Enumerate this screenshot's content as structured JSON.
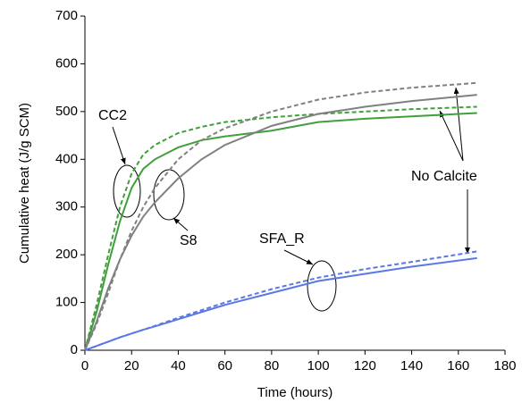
{
  "chart_data": {
    "type": "line",
    "xlabel": "Time (hours)",
    "ylabel": "Cumulative heat (J/g SCM)",
    "x": [
      0,
      5,
      10,
      15,
      20,
      25,
      30,
      40,
      50,
      60,
      80,
      100,
      120,
      140,
      168
    ],
    "series": [
      {
        "color": "#3fa03a",
        "linestyle": "solid",
        "values": [
          0,
          80,
          180,
          270,
          340,
          380,
          400,
          425,
          440,
          448,
          460,
          478,
          485,
          490,
          497
        ]
      },
      {
        "color": "#3fa03a",
        "linestyle": "dashed",
        "values": [
          0,
          95,
          200,
          300,
          370,
          410,
          430,
          455,
          468,
          478,
          488,
          495,
          500,
          505,
          510
        ]
      },
      {
        "color": "#808080",
        "linestyle": "solid",
        "values": [
          0,
          60,
          130,
          190,
          240,
          280,
          310,
          360,
          400,
          430,
          470,
          495,
          510,
          522,
          535
        ]
      },
      {
        "color": "#808080",
        "linestyle": "dashed",
        "values": [
          0,
          55,
          120,
          190,
          250,
          300,
          340,
          400,
          440,
          465,
          500,
          525,
          540,
          550,
          560
        ]
      },
      {
        "color": "#5b78e6",
        "linestyle": "solid",
        "values": [
          0,
          9,
          18,
          27,
          35,
          43,
          50,
          65,
          80,
          95,
          120,
          145,
          160,
          175,
          193
        ]
      },
      {
        "color": "#5b78e6",
        "linestyle": "dashed",
        "values": [
          0,
          9,
          18,
          27,
          35,
          43,
          51,
          68,
          84,
          100,
          128,
          152,
          170,
          185,
          207
        ]
      }
    ],
    "annotations": {
      "cc2": "CC2",
      "s8": "S8",
      "sfa": "SFA_R",
      "no_calcite": "No Calcite"
    },
    "xlim": [
      0,
      180
    ],
    "xticks": [
      0,
      20,
      40,
      60,
      80,
      100,
      120,
      140,
      160,
      180
    ],
    "ylim": [
      0,
      700
    ],
    "yticks": [
      0,
      100,
      200,
      300,
      400,
      500,
      600,
      700
    ]
  }
}
